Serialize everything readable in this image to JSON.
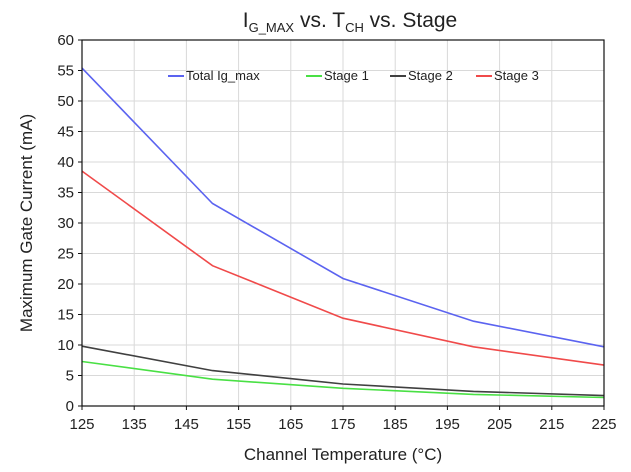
{
  "chart_data": {
    "type": "line",
    "title_parts": {
      "i": "I",
      "i_sub": "G_MAX",
      "mid": " vs. T",
      "t_sub": "CH",
      "end": " vs. Stage"
    },
    "xlabel": "Channel Temperature (°C)",
    "ylabel": "Maximum Gate Current (mA)",
    "xlim": [
      125,
      225
    ],
    "ylim": [
      0,
      60
    ],
    "x_ticks": [
      125,
      135,
      145,
      155,
      165,
      175,
      185,
      195,
      205,
      215,
      225
    ],
    "y_ticks": [
      0,
      5,
      10,
      15,
      20,
      25,
      30,
      35,
      40,
      45,
      50,
      55,
      60
    ],
    "grid": true,
    "legend_position": "top-right",
    "x": [
      125,
      150,
      175,
      200,
      225
    ],
    "series": [
      {
        "name": "Total Ig_max",
        "color": "#5b63f0",
        "values": [
          55.4,
          33.2,
          20.9,
          13.9,
          9.7
        ]
      },
      {
        "name": "Stage 1",
        "color": "#49e044",
        "values": [
          7.3,
          4.4,
          2.9,
          1.9,
          1.4
        ]
      },
      {
        "name": "Stage 2",
        "color": "#404040",
        "values": [
          9.8,
          5.8,
          3.6,
          2.4,
          1.7
        ]
      },
      {
        "name": "Stage 3",
        "color": "#f04a4a",
        "values": [
          38.5,
          23.0,
          14.4,
          9.7,
          6.7
        ]
      }
    ]
  }
}
